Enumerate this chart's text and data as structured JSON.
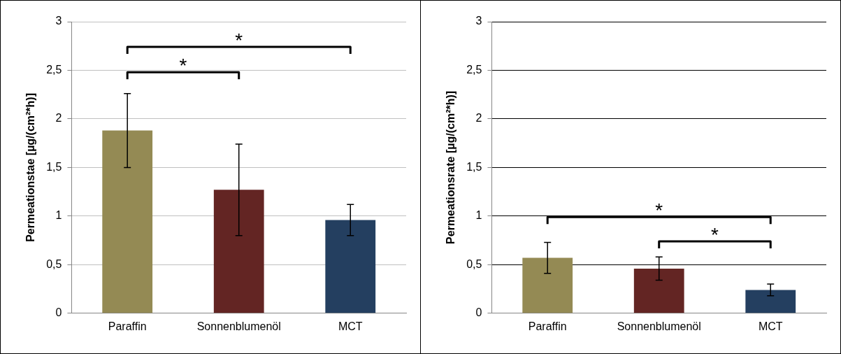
{
  "chart_data": [
    {
      "type": "bar",
      "ylabel": "Permeationstae [µg/(cm²*h)]",
      "categories": [
        "Paraffin",
        "Sonnenblumenöl",
        "MCT"
      ],
      "values": [
        1.88,
        1.27,
        0.96
      ],
      "colors": [
        "#948a54",
        "#632523",
        "#243f60"
      ],
      "errors": [
        0.38,
        0.47,
        0.16
      ],
      "ylim": [
        0,
        3
      ],
      "yticks": [
        0,
        {
          "value": 0.5,
          "label": "0,5"
        },
        1,
        {
          "value": 1.5,
          "label": "1,5"
        },
        2,
        {
          "value": 2.5,
          "label": "2,5"
        },
        3
      ],
      "grid": "y",
      "annotations": [
        "*",
        "*"
      ]
    },
    {
      "type": "bar",
      "ylabel": "Permeationsrate [µg/(cm²*h)]",
      "categories": [
        "Paraffin",
        "Sonnenblumenöl",
        "MCT"
      ],
      "values": [
        0.57,
        0.46,
        0.24
      ],
      "colors": [
        "#948a54",
        "#632523",
        "#243f60"
      ],
      "errors": [
        0.16,
        0.12,
        0.06
      ],
      "ylim": [
        0,
        3
      ],
      "yticks": [
        0,
        {
          "value": 0.5,
          "label": "0,5"
        },
        1,
        {
          "value": 1.5,
          "label": "1,5"
        },
        2,
        {
          "value": 2.5,
          "label": "2,5"
        },
        3
      ],
      "grid": "y",
      "annotations": [
        "*",
        "*"
      ]
    }
  ]
}
